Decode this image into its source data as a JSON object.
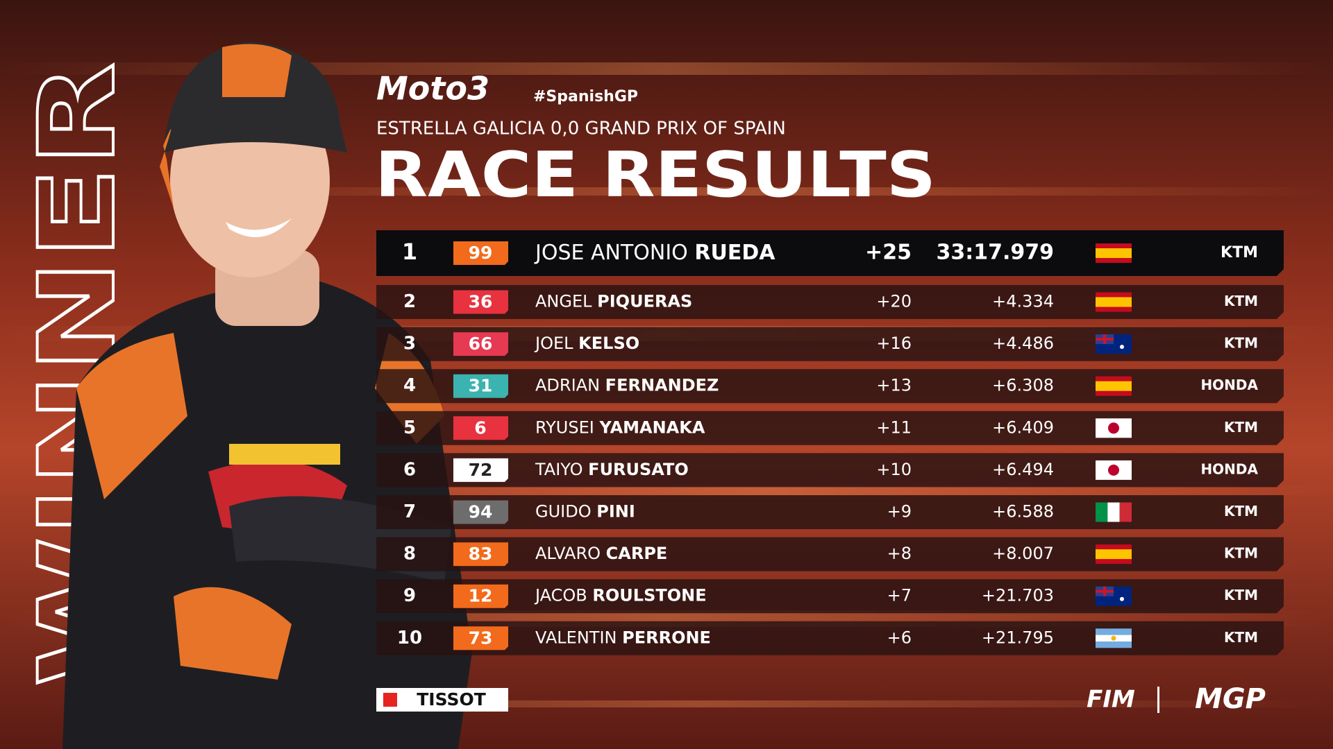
{
  "header": {
    "series": "Moto3",
    "hashtag": "#SpanishGP",
    "event": "ESTRELLA GALICIA 0,0 GRAND PRIX OF SPAIN",
    "title": "RACE RESULTS"
  },
  "side_label": "WINNER",
  "results": {
    "rows": [
      {
        "position": "1",
        "number": "99",
        "number_color": "#f26a1b",
        "first_name": "JOSE ANTONIO",
        "last_name": "RUEDA",
        "points": "+25",
        "time": "33:17.979",
        "team": "KTM"
      },
      {
        "position": "2",
        "number": "36",
        "number_color": "#e8323f",
        "first_name": "ANGEL",
        "last_name": "PIQUERAS",
        "points": "+20",
        "time": "+4.334",
        "team": "KTM"
      },
      {
        "position": "3",
        "number": "66",
        "number_color": "#e53a52",
        "first_name": "JOEL",
        "last_name": "KELSO",
        "points": "+16",
        "time": "+4.486",
        "team": "KTM"
      },
      {
        "position": "4",
        "number": "31",
        "number_color": "#3bb3b0",
        "first_name": "ADRIAN",
        "last_name": "FERNANDEZ",
        "points": "+13",
        "time": "+6.308",
        "team": "HONDA"
      },
      {
        "position": "5",
        "number": "6",
        "number_color": "#e8323f",
        "first_name": "RYUSEI",
        "last_name": "YAMANAKA",
        "points": "+11",
        "time": "+6.409",
        "team": "KTM"
      },
      {
        "position": "6",
        "number": "72",
        "number_color": "#ffffff",
        "first_name": "TAIYO",
        "last_name": "FURUSATO",
        "points": "+10",
        "time": "+6.494",
        "team": "HONDA"
      },
      {
        "position": "7",
        "number": "94",
        "number_color": "#6d6d6d",
        "first_name": "GUIDO",
        "last_name": "PINI",
        "points": "+9",
        "time": "+6.588",
        "team": "KTM"
      },
      {
        "position": "8",
        "number": "83",
        "number_color": "#f26a1b",
        "first_name": "ALVARO",
        "last_name": "CARPE",
        "points": "+8",
        "time": "+8.007",
        "team": "KTM"
      },
      {
        "position": "9",
        "number": "12",
        "number_color": "#f26a1b",
        "first_name": "JACOB",
        "last_name": "ROULSTONE",
        "points": "+7",
        "time": "+21.703",
        "team": "KTM"
      },
      {
        "position": "10",
        "number": "73",
        "number_color": "#f26a1b",
        "first_name": "VALENTIN",
        "last_name": "PERRONE",
        "points": "+6",
        "time": "+21.795",
        "team": "KTM"
      }
    ]
  },
  "footer": {
    "timing": "TISSOT",
    "federation": "FIM",
    "league": "MGP"
  }
}
